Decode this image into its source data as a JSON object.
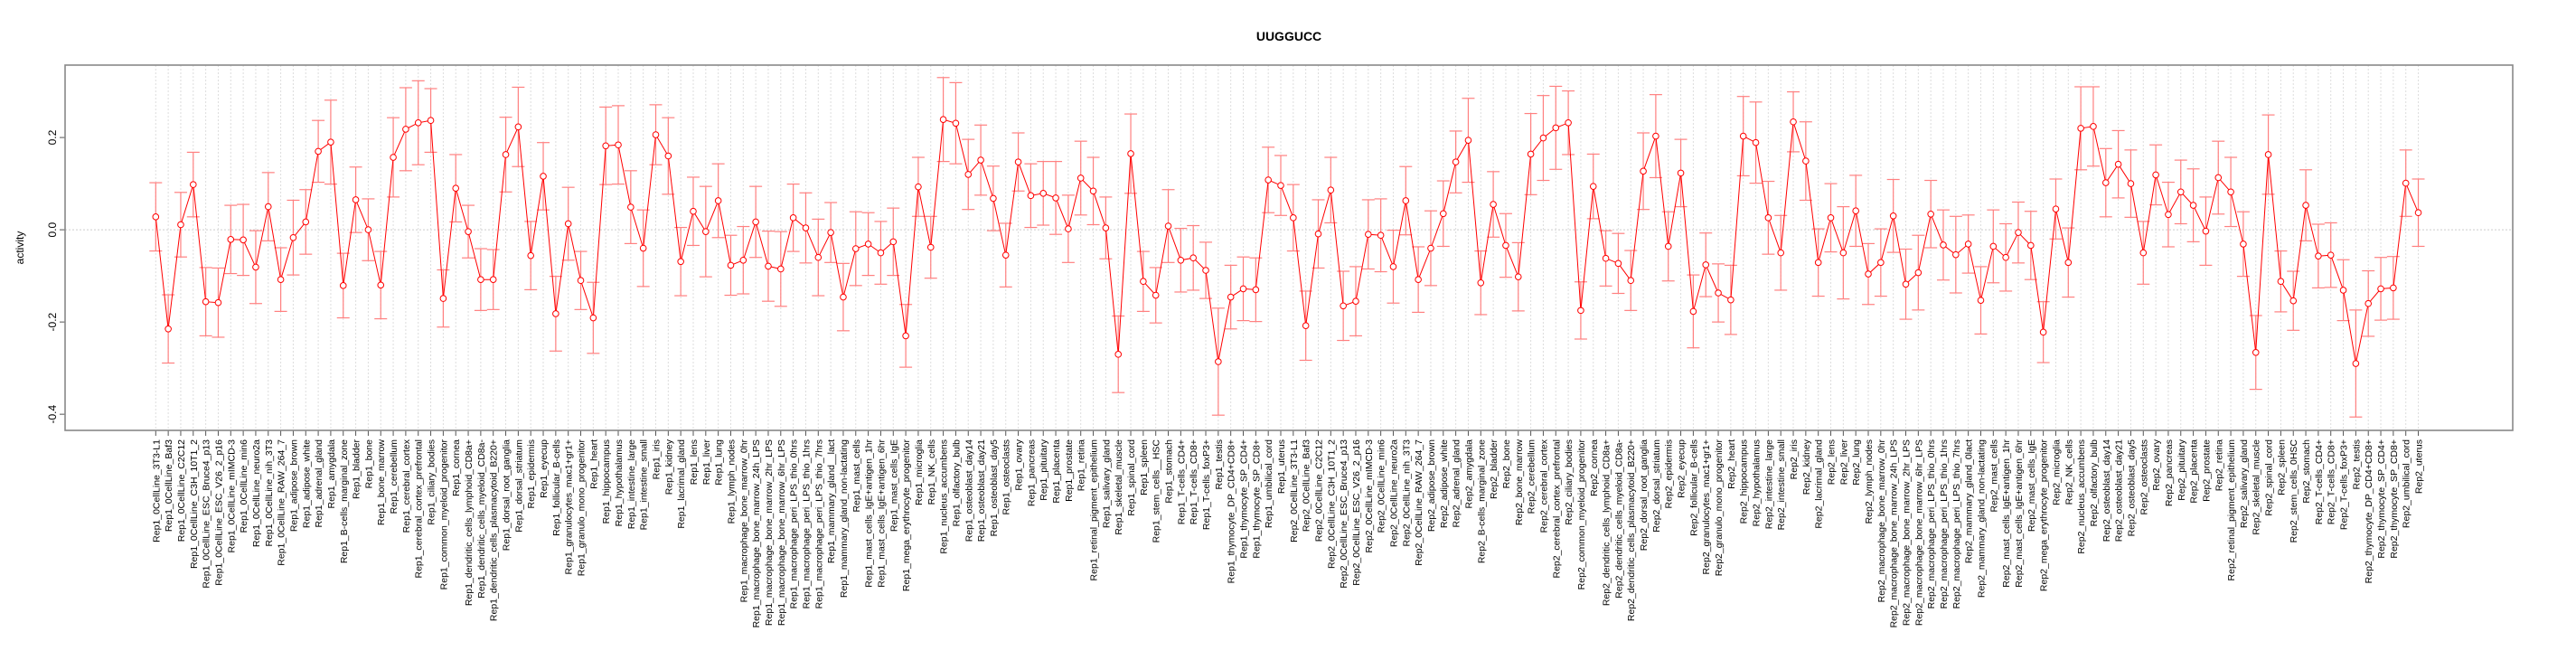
{
  "chart_data": {
    "type": "line",
    "title": "UUGGUCC",
    "xlabel": "",
    "ylabel": "activity",
    "ylim": [
      -0.435,
      0.357
    ],
    "yticks": [
      -0.4,
      -0.2,
      0.0,
      0.2
    ],
    "ytick_labels": [
      "-0.4",
      "-0.2",
      "0.0",
      "0.2"
    ],
    "grid": true,
    "series_color": "#ff0000",
    "errorbar_color": "#ff8080",
    "categories": [
      "Rep1_0CellLine_3T3-L1",
      "Rep1_0CellLine_Baf3",
      "Rep1_0CellLine_C2C12",
      "Rep1_0CellLine_C3H_10T1_2",
      "Rep1_0CellLine_ESC_Bruce4_p13",
      "Rep1_0CellLine_ESC_V26_2_p16",
      "Rep1_0CellLine_mIMCD-3",
      "Rep1_0CellLine_min6",
      "Rep1_0CellLine_neuro2a",
      "Rep1_0CellLine_nih_3T3",
      "Rep1_0CellLine_RAW_264_7",
      "Rep1_adipose_brown",
      "Rep1_adipose_white",
      "Rep1_adrenal_gland",
      "Rep1_amygdala",
      "Rep1_B-cells_marginal_zone",
      "Rep1_bladder",
      "Rep1_bone",
      "Rep1_bone_marrow",
      "Rep1_cerebellum",
      "Rep1_cerebral_cortex",
      "Rep1_cerebral_cortex_prefrontal",
      "Rep1_ciliary_bodies",
      "Rep1_common_myeloid_progenitor",
      "Rep1_cornea",
      "Rep1_dendritic_cells_lymphoid_CD8a+",
      "Rep1_dendritic_cells_myeloid_CD8a-",
      "Rep1_dendritic_cells_plasmacytoid_B220+",
      "Rep1_dorsal_root_ganglia",
      "Rep1_dorsal_striatum",
      "Rep1_epidermis",
      "Rep1_eyecup",
      "Rep1_follicular_B-cells",
      "Rep1_granulocytes_mac1+gr1+",
      "Rep1_granulo_mono_progenitor",
      "Rep1_heart",
      "Rep1_hippocampus",
      "Rep1_hypothalamus",
      "Rep1_intestine_large",
      "Rep1_intestine_small",
      "Rep1_iris",
      "Rep1_kidney",
      "Rep1_lacrimal_gland",
      "Rep1_lens",
      "Rep1_liver",
      "Rep1_lung",
      "Rep1_lymph_nodes",
      "Rep1_macrophage_bone_marrow_0hr",
      "Rep1_macrophage_bone_marrow_24h_LPS",
      "Rep1_macrophage_bone_marrow_2hr_LPS",
      "Rep1_macrophage_bone_marrow_6hr_LPS",
      "Rep1_macrophage_peri_LPS_thio_0hrs",
      "Rep1_macrophage_peri_LPS_thio_1hrs",
      "Rep1_macrophage_peri_LPS_thio_7hrs",
      "Rep1_mammary_gland__lact",
      "Rep1_mammary_gland_non-lactating",
      "Rep1_mast_cells",
      "Rep1_mast_cells_IgE+antigen_1hr",
      "Rep1_mast_cells_IgE+antigen_6hr",
      "Rep1_mast_cells_IgE",
      "Rep1_mega_erythrocyte_progenitor",
      "Rep1_microglia",
      "Rep1_NK_cells",
      "Rep1_nucleus_accumbens",
      "Rep1_olfactory_bulb",
      "Rep1_osteoblast_day14",
      "Rep1_osteoblast_day21",
      "Rep1_osteoblast_day5",
      "Rep1_osteoclasts",
      "Rep1_ovary",
      "Rep1_pancreas",
      "Rep1_pituitary",
      "Rep1_placenta",
      "Rep1_prostate",
      "Rep1_retina",
      "Rep1_retinal_pigment_epithelium",
      "Rep1_salivary_gland",
      "Rep1_skeletal_muscle",
      "Rep1_spinal_cord",
      "Rep1_spleen",
      "Rep1_stem_cells__HSC",
      "Rep1_stomach",
      "Rep1_T-cells_CD4+",
      "Rep1_T-cells_CD8+",
      "Rep1_T-cells_foxP3+",
      "Rep1_testis",
      "Rep1_thymocyte_DP_CD4+CD8+",
      "Rep1_thymocyte_SP_CD4+",
      "Rep1_thymocyte_SP_CD8+",
      "Rep1_umbilical_cord",
      "Rep1_uterus",
      "Rep2_0CellLine_3T3-L1",
      "Rep2_0CellLine_Baf3",
      "Rep2_0CellLine_C2C12",
      "Rep2_0CellLine_C3H_10T1_2",
      "Rep2_0CellLine_ESC_Bruce4_p13",
      "Rep2_0CellLine_ESC_V26_2_p16",
      "Rep2_0CellLine_mIMCD-3",
      "Rep2_0CellLine_min6",
      "Rep2_0CellLine_neuro2a",
      "Rep2_0CellLine_nih_3T3",
      "Rep2_0CellLine_RAW_264_7",
      "Rep2_adipose_brown",
      "Rep2_adipose_white",
      "Rep2_adrenal_gland",
      "Rep2_amygdala",
      "Rep2_B-cells_marginal_zone",
      "Rep2_bladder",
      "Rep2_bone",
      "Rep2_bone_marrow",
      "Rep2_cerebellum",
      "Rep2_cerebral_cortex",
      "Rep2_cerebral_cortex_prefrontal",
      "Rep2_ciliary_bodies",
      "Rep2_common_myeloid_progenitor",
      "Rep2_cornea",
      "Rep2_dendritic_cells_lymphoid_CD8a+",
      "Rep2_dendritic_cells_myeloid_CD8a-",
      "Rep2_dendritic_cells_plasmacytoid_B220+",
      "Rep2_dorsal_root_ganglia",
      "Rep2_dorsal_striatum",
      "Rep2_epidermis",
      "Rep2_eyecup",
      "Rep2_follicular_B-cells",
      "Rep2_granulocytes_mac1+gr1+",
      "Rep2_granulo_mono_progenitor",
      "Rep2_heart",
      "Rep2_hippocampus",
      "Rep2_hypothalamus",
      "Rep2_intestine_large",
      "Rep2_intestine_small",
      "Rep2_iris",
      "Rep2_kidney",
      "Rep2_lacrimal_gland",
      "Rep2_lens",
      "Rep2_liver",
      "Rep2_lung",
      "Rep2_lymph_nodes",
      "Rep2_macrophage_bone_marrow_0hr",
      "Rep2_macrophage_bone_marrow_24h_LPS",
      "Rep2_macrophage_bone_marrow_2hr_LPS",
      "Rep2_macrophage_bone_marrow_6hr_LPS",
      "Rep2_macrophage_peri_LPS_thio_0hrs",
      "Rep2_macrophage_peri_LPS_thio_1hrs",
      "Rep2_macrophage_peri_LPS_thio_7hrs",
      "Rep2_mammary_gland_0lact",
      "Rep2_mammary_gland_non-lactating",
      "Rep2_mast_cells",
      "Rep2_mast_cells_IgE+antigen_1hr",
      "Rep2_mast_cells_IgE+antigen_6hr",
      "Rep2_mast_cells_IgE",
      "Rep2_mega_erythrocyte_progenitor",
      "Rep2_microglia",
      "Rep2_NK_cells",
      "Rep2_nucleus_accumbens",
      "Rep2_olfactory_bulb",
      "Rep2_osteoblast_day14",
      "Rep2_osteoblast_day21",
      "Rep2_osteoblast_day5",
      "Rep2_osteoclasts",
      "Rep2_ovary",
      "Rep2_pancreas",
      "Rep2_pituitary",
      "Rep2_placenta",
      "Rep2_prostate",
      "Rep2_retina",
      "Rep2_retinal_pigment_epithelium",
      "Rep2_salivary_gland",
      "Rep2_skeletal_muscle",
      "Rep2_spinal_cord",
      "Rep2_spleen",
      "Rep2_stem_cells_0HSC",
      "Rep2_stomach",
      "Rep2_T-cells_CD4+",
      "Rep2_T-cells_CD8+",
      "Rep2_T-cells_foxP3+",
      "Rep2_testis",
      "Rep2_thymocyte_DP_CD4+CD8+",
      "Rep2_thymocyte_SP_CD4+",
      "Rep2_thymocyte_SP_CD8+",
      "Rep2_umbilical_cord",
      "Rep2_uterus"
    ],
    "values": [
      0.028,
      -0.215,
      0.011,
      0.098,
      -0.156,
      -0.158,
      -0.021,
      -0.022,
      -0.081,
      0.05,
      -0.108,
      -0.017,
      0.017,
      0.17,
      0.19,
      -0.121,
      0.065,
      0.0,
      -0.12,
      0.157,
      0.218,
      0.232,
      0.237,
      -0.149,
      0.09,
      -0.004,
      -0.108,
      -0.108,
      0.163,
      0.223,
      -0.056,
      0.116,
      -0.182,
      0.013,
      -0.11,
      -0.191,
      0.182,
      0.184,
      0.049,
      -0.04,
      0.206,
      0.16,
      -0.069,
      0.04,
      -0.004,
      0.063,
      -0.077,
      -0.066,
      0.017,
      -0.079,
      -0.085,
      0.026,
      0.004,
      -0.06,
      -0.006,
      -0.146,
      -0.041,
      -0.031,
      -0.05,
      -0.026,
      -0.23,
      0.093,
      -0.038,
      0.239,
      0.231,
      0.12,
      0.151,
      0.068,
      -0.055,
      0.147,
      0.074,
      0.079,
      0.069,
      0.002,
      0.112,
      0.084,
      0.004,
      -0.27,
      0.165,
      -0.112,
      -0.142,
      0.008,
      -0.066,
      -0.061,
      -0.088,
      -0.286,
      -0.146,
      -0.128,
      -0.13,
      0.108,
      0.096,
      0.026,
      -0.208,
      -0.009,
      0.086,
      -0.165,
      -0.155,
      -0.01,
      -0.012,
      -0.08,
      0.063,
      -0.108,
      -0.04,
      0.035,
      0.147,
      0.194,
      -0.115,
      0.055,
      -0.034,
      -0.102,
      0.164,
      0.199,
      0.221,
      0.232,
      -0.175,
      0.094,
      -0.062,
      -0.073,
      -0.11,
      0.127,
      0.203,
      -0.036,
      0.123,
      -0.177,
      -0.076,
      -0.137,
      -0.152,
      0.203,
      0.189,
      0.026,
      -0.05,
      0.234,
      0.149,
      -0.071,
      0.026,
      -0.05,
      0.041,
      -0.096,
      -0.071,
      0.03,
      -0.118,
      -0.093,
      0.034,
      -0.033,
      -0.054,
      -0.031,
      -0.153,
      -0.036,
      -0.06,
      -0.006,
      -0.034,
      -0.222,
      0.045,
      -0.071,
      0.22,
      0.224,
      0.102,
      0.142,
      0.1,
      -0.05,
      0.119,
      0.033,
      0.082,
      0.053,
      -0.003,
      0.113,
      0.082,
      -0.031,
      -0.266,
      0.163,
      -0.112,
      -0.154,
      0.053,
      -0.057,
      -0.055,
      -0.131,
      -0.29,
      -0.16,
      -0.128,
      -0.126,
      0.101,
      0.037
    ],
    "errors": [
      0.074,
      0.074,
      0.07,
      0.07,
      0.074,
      0.075,
      0.074,
      0.077,
      0.079,
      0.074,
      0.069,
      0.081,
      0.07,
      0.067,
      0.091,
      0.07,
      0.071,
      0.067,
      0.073,
      0.086,
      0.09,
      0.091,
      0.069,
      0.062,
      0.073,
      0.057,
      0.067,
      0.065,
      0.081,
      0.086,
      0.074,
      0.073,
      0.081,
      0.079,
      0.063,
      0.077,
      0.084,
      0.085,
      0.079,
      0.083,
      0.065,
      0.083,
      0.074,
      0.074,
      0.098,
      0.08,
      0.065,
      0.073,
      0.077,
      0.076,
      0.081,
      0.073,
      0.076,
      0.083,
      0.065,
      0.073,
      0.08,
      0.068,
      0.068,
      0.073,
      0.068,
      0.064,
      0.067,
      0.091,
      0.088,
      0.076,
      0.076,
      0.07,
      0.069,
      0.063,
      0.069,
      0.069,
      0.079,
      0.073,
      0.08,
      0.073,
      0.067,
      0.083,
      0.086,
      0.065,
      0.06,
      0.079,
      0.069,
      0.07,
      0.061,
      0.116,
      0.069,
      0.069,
      0.069,
      0.071,
      0.065,
      0.072,
      0.075,
      0.074,
      0.071,
      0.075,
      0.075,
      0.075,
      0.079,
      0.079,
      0.074,
      0.071,
      0.081,
      0.071,
      0.067,
      0.091,
      0.069,
      0.071,
      0.069,
      0.074,
      0.088,
      0.092,
      0.09,
      0.069,
      0.062,
      0.07,
      0.06,
      0.065,
      0.065,
      0.083,
      0.09,
      0.075,
      0.073,
      0.079,
      0.069,
      0.063,
      0.075,
      0.086,
      0.088,
      0.079,
      0.081,
      0.065,
      0.085,
      0.073,
      0.074,
      0.1,
      0.077,
      0.066,
      0.073,
      0.079,
      0.076,
      0.081,
      0.073,
      0.076,
      0.083,
      0.063,
      0.073,
      0.079,
      0.073,
      0.066,
      0.074,
      0.066,
      0.065,
      0.075,
      0.09,
      0.086,
      0.074,
      0.073,
      0.073,
      0.068,
      0.065,
      0.07,
      0.069,
      0.079,
      0.074,
      0.079,
      0.075,
      0.07,
      0.08,
      0.086,
      0.066,
      0.064,
      0.077,
      0.069,
      0.07,
      0.066,
      0.116,
      0.071,
      0.068,
      0.068,
      0.072,
      0.073
    ]
  }
}
